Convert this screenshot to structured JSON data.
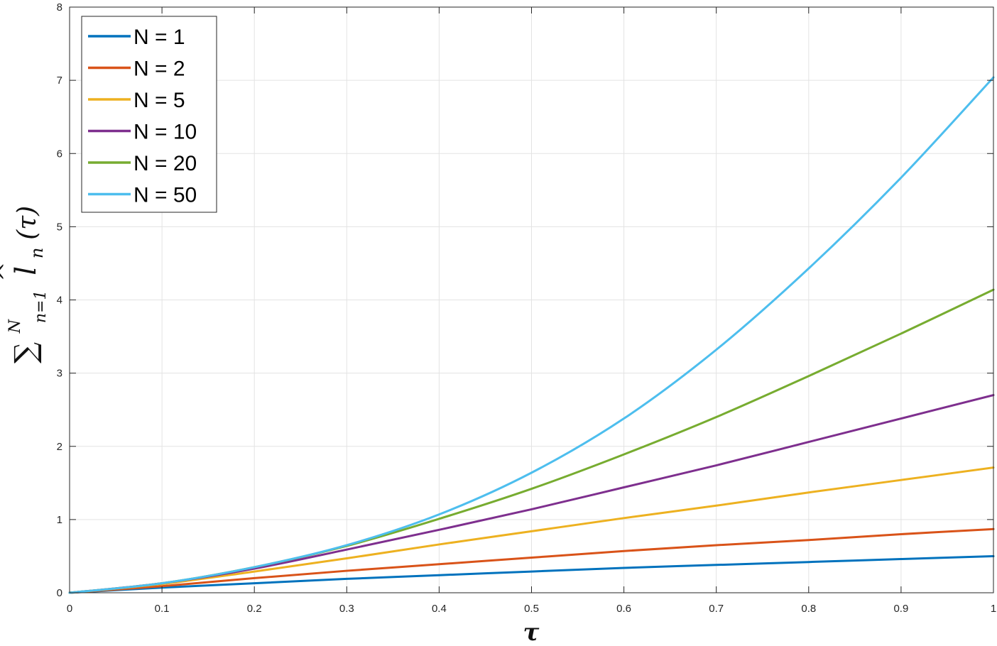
{
  "chart_data": {
    "type": "line",
    "xlabel": "τ",
    "ylabel": {
      "sum": "∑",
      "sup": "N",
      "sub": "n=1",
      "hat": "^",
      "var": "l",
      "var_sub": "n",
      "arg": "(τ)"
    },
    "xlim": [
      0,
      1
    ],
    "ylim": [
      0,
      8
    ],
    "xticks": [
      0,
      0.1,
      0.2,
      0.3,
      0.4,
      0.5,
      0.6,
      0.7,
      0.8,
      0.9,
      1
    ],
    "yticks": [
      0,
      1,
      2,
      3,
      4,
      5,
      6,
      7,
      8
    ],
    "grid": true,
    "legend_position": "top-left",
    "x": [
      0,
      0.1,
      0.2,
      0.3,
      0.4,
      0.5,
      0.6,
      0.7,
      0.8,
      0.9,
      1.0
    ],
    "series": [
      {
        "name": "N = 1",
        "color": "#0072BD",
        "values": [
          0,
          0.07,
          0.13,
          0.19,
          0.24,
          0.29,
          0.34,
          0.38,
          0.42,
          0.46,
          0.5
        ]
      },
      {
        "name": "N = 2",
        "color": "#D95319",
        "values": [
          0,
          0.09,
          0.2,
          0.3,
          0.39,
          0.48,
          0.57,
          0.65,
          0.72,
          0.8,
          0.87
        ]
      },
      {
        "name": "N = 5",
        "color": "#EDB120",
        "values": [
          0,
          0.12,
          0.29,
          0.47,
          0.66,
          0.84,
          1.02,
          1.19,
          1.37,
          1.54,
          1.71
        ]
      },
      {
        "name": "N = 10",
        "color": "#7E2F8E",
        "values": [
          0,
          0.13,
          0.33,
          0.59,
          0.86,
          1.14,
          1.44,
          1.74,
          2.06,
          2.38,
          2.7
        ]
      },
      {
        "name": "N = 20",
        "color": "#77AC30",
        "values": [
          0,
          0.13,
          0.35,
          0.64,
          1.01,
          1.42,
          1.89,
          2.4,
          2.96,
          3.54,
          4.14
        ]
      },
      {
        "name": "N = 50",
        "color": "#4DBEEE",
        "values": [
          0,
          0.13,
          0.35,
          0.65,
          1.07,
          1.64,
          2.38,
          3.32,
          4.43,
          5.67,
          7.04
        ]
      }
    ]
  }
}
